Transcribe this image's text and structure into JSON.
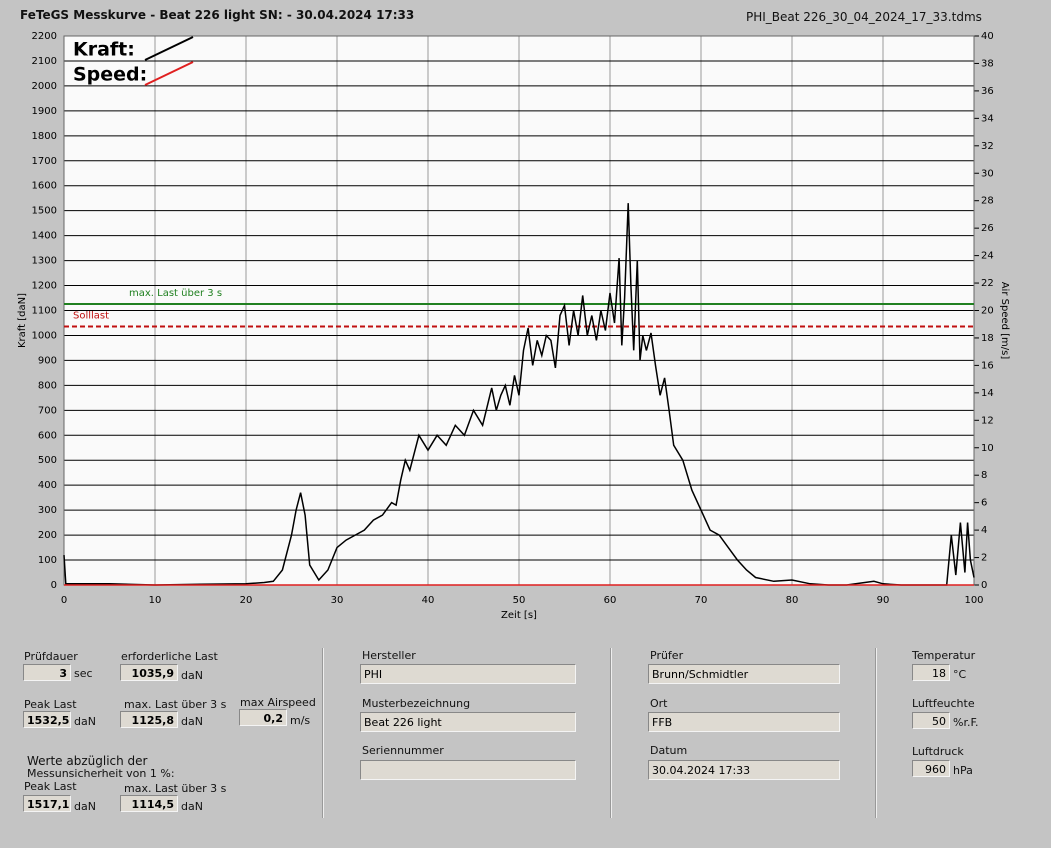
{
  "header": {
    "title": "FeTeGS Messkurve - Beat 226 light  SN:  - 30.04.2024 17:33",
    "file": "PHI_Beat 226_30_04_2024_17_33.tdms"
  },
  "chart_data": {
    "type": "line",
    "xlabel": "Zeit [s]",
    "ylabel": "Kraft [daN]",
    "y2label": "Air Speed [m/s]",
    "xlim": [
      0,
      100
    ],
    "xticks": [
      0,
      10,
      20,
      30,
      40,
      50,
      60,
      70,
      80,
      90,
      100
    ],
    "ylim": [
      0,
      2200
    ],
    "yticks": [
      0,
      100,
      200,
      300,
      400,
      500,
      600,
      700,
      800,
      900,
      1000,
      1100,
      1200,
      1300,
      1400,
      1500,
      1600,
      1700,
      1800,
      1900,
      2000,
      2100,
      2200
    ],
    "y2lim": [
      0,
      40
    ],
    "y2ticks": [
      0,
      2,
      4,
      6,
      8,
      10,
      12,
      14,
      16,
      18,
      20,
      22,
      24,
      26,
      28,
      30,
      32,
      34,
      36,
      38,
      40
    ],
    "grid": true,
    "series": [
      {
        "name": "Kraft:",
        "color": "#000000",
        "x": [
          0,
          0.2,
          1,
          5,
          10,
          15,
          20,
          22,
          23,
          24,
          25,
          25.5,
          26,
          26.5,
          27,
          28,
          29,
          30,
          31,
          32,
          33,
          34,
          35,
          36,
          36.5,
          37,
          37.5,
          38,
          39,
          40,
          41,
          42,
          43,
          44,
          45,
          46,
          47,
          47.5,
          48,
          48.5,
          49,
          49.5,
          50,
          50.5,
          51,
          51.5,
          52,
          52.5,
          53,
          53.5,
          54,
          54.5,
          55,
          55.5,
          56,
          56.5,
          57,
          57.5,
          58,
          58.5,
          59,
          59.5,
          60,
          60.5,
          61,
          61.3,
          61.6,
          62,
          62.3,
          62.6,
          63,
          63.3,
          63.6,
          64,
          64.5,
          65,
          65.5,
          66,
          66.5,
          67,
          68,
          69,
          70,
          71,
          72,
          73,
          74,
          75,
          76,
          78,
          80,
          82,
          84,
          86,
          88,
          89,
          90,
          92,
          95,
          97,
          97.5,
          98,
          98.5,
          99,
          99.3,
          99.6,
          100
        ],
        "values": [
          120,
          5,
          5,
          5,
          0,
          3,
          5,
          10,
          15,
          60,
          200,
          300,
          370,
          280,
          80,
          20,
          60,
          150,
          180,
          200,
          220,
          260,
          280,
          330,
          320,
          420,
          500,
          460,
          600,
          540,
          600,
          560,
          640,
          600,
          700,
          640,
          790,
          700,
          760,
          800,
          720,
          840,
          760,
          940,
          1030,
          880,
          980,
          920,
          1000,
          980,
          870,
          1080,
          1120,
          960,
          1100,
          1000,
          1160,
          1000,
          1080,
          980,
          1100,
          1020,
          1170,
          1050,
          1310,
          960,
          1150,
          1530,
          1200,
          940,
          1300,
          900,
          1000,
          940,
          1010,
          880,
          760,
          830,
          700,
          560,
          500,
          380,
          300,
          220,
          200,
          150,
          100,
          60,
          30,
          15,
          20,
          5,
          0,
          0,
          10,
          15,
          5,
          0,
          0,
          0,
          200,
          40,
          250,
          50,
          250,
          100,
          30
        ]
      },
      {
        "name": "Speed:",
        "color": "#e02020",
        "axis": "y2",
        "x": [
          0,
          100
        ],
        "values": [
          0,
          0
        ]
      }
    ],
    "hlines": [
      {
        "label": "max. Last über  3 s",
        "value": 1125.8,
        "color": "#208020"
      },
      {
        "label": "Solllast",
        "value": 1035.9,
        "color": "#c01010"
      }
    ]
  },
  "form": {
    "pruefdauer": {
      "label": "Prüfdauer",
      "value": "3",
      "unit": "sec"
    },
    "erfLast": {
      "label": "erforderliche Last",
      "value": "1035,9",
      "unit": "daN"
    },
    "peak": {
      "label": "Peak Last",
      "value": "1532,5",
      "unit": "daN"
    },
    "max3": {
      "label": "max. Last über  3 s",
      "value": "1125,8",
      "unit": "daN"
    },
    "air": {
      "label": "max Airspeed",
      "value": "0,2",
      "unit": "m/s"
    },
    "note": [
      "Werte abzüglich der",
      "Messunsicherheit von 1  %:"
    ],
    "peak2": {
      "label": "Peak Last",
      "value": "1517,1",
      "unit": "daN"
    },
    "max32": {
      "label": "max. Last über  3 s",
      "value": "1114,5",
      "unit": "daN"
    },
    "hersteller": {
      "label": "Hersteller",
      "value": "PHI"
    },
    "muster": {
      "label": "Musterbezeichnung",
      "value": "Beat 226 light"
    },
    "serie": {
      "label": "Seriennummer"
    },
    "pruefer": {
      "label": "Prüfer",
      "value": "Brunn/Schmidtler"
    },
    "ort": {
      "label": "Ort",
      "value": "FFB"
    },
    "datum": {
      "label": "Datum",
      "value": "30.04.2024 17:33"
    },
    "temp": {
      "label": "Temperatur",
      "value": "18",
      "unit": "°C"
    },
    "feuchte": {
      "label": "Luftfeuchte",
      "value": "50",
      "unit": "%r.F."
    },
    "druck": {
      "label": "Luftdruck",
      "value": "960",
      "unit": "hPa"
    }
  }
}
